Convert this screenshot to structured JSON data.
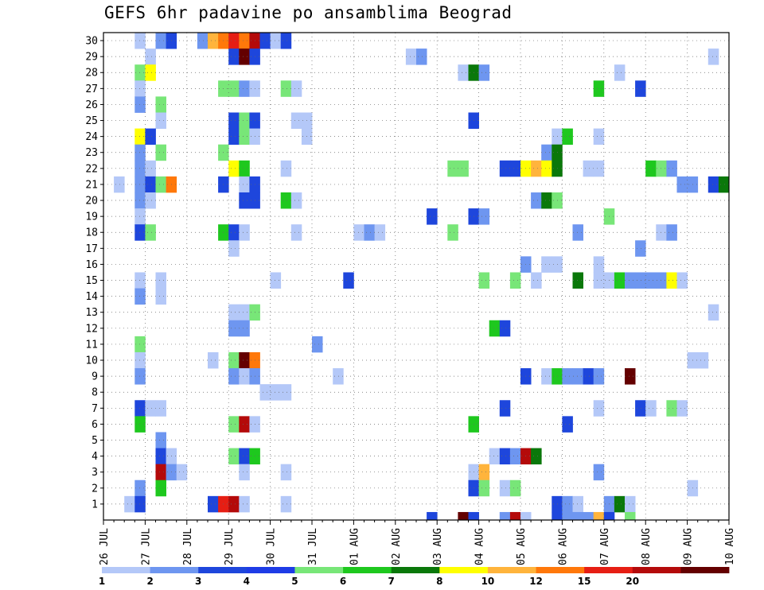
{
  "chart_data": {
    "type": "heatmap",
    "title": "GEFS 6hr padavine po ansamblima Beograd",
    "xlabel": "",
    "ylabel": "",
    "x_tick_labels": [
      "26 JUL",
      "27 JUL",
      "28 JUL",
      "29 JUL",
      "30 JUL",
      "31 JUL",
      "01 AUG",
      "02 AUG",
      "03 AUG",
      "04 AUG",
      "05 AUG",
      "06 AUG",
      "07 AUG",
      "08 AUG",
      "09 AUG",
      "10 AUG"
    ],
    "y_tick_labels": [
      "1",
      "2",
      "3",
      "4",
      "5",
      "6",
      "7",
      "8",
      "9",
      "10",
      "11",
      "12",
      "13",
      "14",
      "15",
      "16",
      "17",
      "18",
      "19",
      "20",
      "21",
      "22",
      "23",
      "24",
      "25",
      "26",
      "27",
      "28",
      "29",
      "30"
    ],
    "x_unit": "6-hour step from 26 JUL 00Z",
    "x_range": [
      0,
      60
    ],
    "y_range": [
      0,
      30
    ],
    "grid": true,
    "legend": {
      "position": "bottom",
      "tick_labels": [
        "1",
        "2",
        "3",
        "4",
        "5",
        "6",
        "7",
        "8",
        "10",
        "12",
        "15",
        "20"
      ],
      "colors": [
        "#b4c8f8",
        "#6e96f0",
        "#1e46dc",
        "#1e3ce6",
        "#78e678",
        "#1ec81e",
        "#0a780a",
        "#ffff00",
        "#ffb43c",
        "#ff780a",
        "#e61e14",
        "#b40a0a",
        "#640000"
      ]
    },
    "colors": [
      "#b4c8f8",
      "#6e96f0",
      "#1e46dc",
      "#78e678",
      "#1ec81e",
      "#0a780a",
      "#ffff00",
      "#ffb43c",
      "#ff780a",
      "#e61e14",
      "#b40a0a",
      "#640000"
    ],
    "cells": [
      [
        4,
        30,
        1
      ],
      [
        6,
        30,
        2
      ],
      [
        7,
        30,
        3
      ],
      [
        10,
        30,
        2
      ],
      [
        11,
        30,
        8
      ],
      [
        12,
        30,
        9
      ],
      [
        13,
        30,
        10
      ],
      [
        14,
        30,
        9
      ],
      [
        15,
        30,
        11
      ],
      [
        16,
        30,
        3
      ],
      [
        17,
        30,
        1
      ],
      [
        18,
        30,
        3
      ],
      [
        5,
        29,
        1
      ],
      [
        13,
        29,
        3
      ],
      [
        14,
        29,
        12
      ],
      [
        15,
        29,
        3
      ],
      [
        30,
        29,
        1
      ],
      [
        31,
        29,
        2
      ],
      [
        59,
        29,
        1
      ],
      [
        4,
        28,
        4
      ],
      [
        5,
        28,
        7
      ],
      [
        35,
        28,
        1
      ],
      [
        36,
        28,
        6
      ],
      [
        37,
        28,
        2
      ],
      [
        50,
        28,
        1
      ],
      [
        4,
        27,
        1
      ],
      [
        12,
        27,
        4
      ],
      [
        13,
        27,
        4
      ],
      [
        14,
        27,
        2
      ],
      [
        15,
        27,
        1
      ],
      [
        18,
        27,
        4
      ],
      [
        19,
        27,
        1
      ],
      [
        48,
        27,
        5
      ],
      [
        52,
        27,
        3
      ],
      [
        4,
        26,
        2
      ],
      [
        6,
        26,
        4
      ],
      [
        6,
        25,
        1
      ],
      [
        13,
        25,
        3
      ],
      [
        14,
        25,
        4
      ],
      [
        15,
        25,
        3
      ],
      [
        19,
        25,
        1
      ],
      [
        20,
        25,
        1
      ],
      [
        36,
        25,
        3
      ],
      [
        4,
        24,
        7
      ],
      [
        5,
        24,
        3
      ],
      [
        13,
        24,
        3
      ],
      [
        14,
        24,
        4
      ],
      [
        15,
        24,
        1
      ],
      [
        20,
        24,
        1
      ],
      [
        44,
        24,
        1
      ],
      [
        45,
        24,
        5
      ],
      [
        48,
        24,
        1
      ],
      [
        4,
        23,
        2
      ],
      [
        6,
        23,
        4
      ],
      [
        12,
        23,
        4
      ],
      [
        43,
        23,
        2
      ],
      [
        44,
        23,
        6
      ],
      [
        4,
        22,
        2
      ],
      [
        5,
        22,
        1
      ],
      [
        13,
        22,
        7
      ],
      [
        14,
        22,
        5
      ],
      [
        18,
        22,
        1
      ],
      [
        34,
        22,
        4
      ],
      [
        35,
        22,
        4
      ],
      [
        39,
        22,
        3
      ],
      [
        40,
        22,
        3
      ],
      [
        41,
        22,
        7
      ],
      [
        42,
        22,
        8
      ],
      [
        43,
        22,
        7
      ],
      [
        44,
        22,
        6
      ],
      [
        47,
        22,
        1
      ],
      [
        48,
        22,
        1
      ],
      [
        53,
        22,
        5
      ],
      [
        54,
        22,
        4
      ],
      [
        55,
        22,
        2
      ],
      [
        2,
        21,
        1
      ],
      [
        4,
        21,
        2
      ],
      [
        5,
        21,
        3
      ],
      [
        6,
        21,
        4
      ],
      [
        7,
        21,
        9
      ],
      [
        12,
        21,
        3
      ],
      [
        14,
        21,
        1
      ],
      [
        15,
        21,
        3
      ],
      [
        56,
        21,
        2
      ],
      [
        57,
        21,
        2
      ],
      [
        59,
        21,
        3
      ],
      [
        60,
        21,
        6
      ],
      [
        4,
        20,
        2
      ],
      [
        5,
        20,
        1
      ],
      [
        14,
        20,
        3
      ],
      [
        15,
        20,
        3
      ],
      [
        18,
        20,
        5
      ],
      [
        19,
        20,
        1
      ],
      [
        42,
        20,
        2
      ],
      [
        43,
        20,
        6
      ],
      [
        44,
        20,
        4
      ],
      [
        4,
        19,
        1
      ],
      [
        32,
        19,
        3
      ],
      [
        36,
        19,
        3
      ],
      [
        37,
        19,
        2
      ],
      [
        49,
        19,
        4
      ],
      [
        4,
        18,
        3
      ],
      [
        5,
        18,
        4
      ],
      [
        12,
        18,
        5
      ],
      [
        13,
        18,
        3
      ],
      [
        14,
        18,
        1
      ],
      [
        19,
        18,
        1
      ],
      [
        25,
        18,
        1
      ],
      [
        26,
        18,
        2
      ],
      [
        27,
        18,
        1
      ],
      [
        34,
        18,
        4
      ],
      [
        46,
        18,
        2
      ],
      [
        54,
        18,
        1
      ],
      [
        55,
        18,
        2
      ],
      [
        13,
        17,
        1
      ],
      [
        52,
        17,
        2
      ],
      [
        41,
        16,
        2
      ],
      [
        43,
        16,
        1
      ],
      [
        44,
        16,
        1
      ],
      [
        48,
        16,
        1
      ],
      [
        4,
        15,
        1
      ],
      [
        6,
        15,
        1
      ],
      [
        17,
        15,
        1
      ],
      [
        24,
        15,
        3
      ],
      [
        37,
        15,
        4
      ],
      [
        40,
        15,
        4
      ],
      [
        42,
        15,
        1
      ],
      [
        46,
        15,
        6
      ],
      [
        48,
        15,
        1
      ],
      [
        49,
        15,
        1
      ],
      [
        50,
        15,
        5
      ],
      [
        51,
        15,
        2
      ],
      [
        52,
        15,
        2
      ],
      [
        53,
        15,
        2
      ],
      [
        54,
        15,
        2
      ],
      [
        55,
        15,
        7
      ],
      [
        56,
        15,
        1
      ],
      [
        4,
        14,
        2
      ],
      [
        6,
        14,
        1
      ],
      [
        13,
        13,
        1
      ],
      [
        14,
        13,
        1
      ],
      [
        15,
        13,
        4
      ],
      [
        59,
        13,
        1
      ],
      [
        13,
        12,
        2
      ],
      [
        14,
        12,
        2
      ],
      [
        38,
        12,
        5
      ],
      [
        39,
        12,
        3
      ],
      [
        4,
        11,
        4
      ],
      [
        21,
        11,
        2
      ],
      [
        4,
        10,
        1
      ],
      [
        11,
        10,
        1
      ],
      [
        13,
        10,
        4
      ],
      [
        14,
        10,
        12
      ],
      [
        15,
        10,
        9
      ],
      [
        57,
        10,
        1
      ],
      [
        58,
        10,
        1
      ],
      [
        4,
        9,
        2
      ],
      [
        13,
        9,
        2
      ],
      [
        14,
        9,
        1
      ],
      [
        15,
        9,
        2
      ],
      [
        23,
        9,
        1
      ],
      [
        41,
        9,
        3
      ],
      [
        43,
        9,
        1
      ],
      [
        44,
        9,
        5
      ],
      [
        45,
        9,
        2
      ],
      [
        46,
        9,
        2
      ],
      [
        47,
        9,
        3
      ],
      [
        48,
        9,
        2
      ],
      [
        51,
        9,
        12
      ],
      [
        16,
        8,
        1
      ],
      [
        17,
        8,
        1
      ],
      [
        18,
        8,
        1
      ],
      [
        4,
        7,
        3
      ],
      [
        5,
        7,
        1
      ],
      [
        6,
        7,
        1
      ],
      [
        39,
        7,
        3
      ],
      [
        48,
        7,
        1
      ],
      [
        52,
        7,
        3
      ],
      [
        53,
        7,
        1
      ],
      [
        55,
        7,
        4
      ],
      [
        56,
        7,
        1
      ],
      [
        4,
        6,
        5
      ],
      [
        13,
        6,
        4
      ],
      [
        14,
        6,
        11
      ],
      [
        15,
        6,
        1
      ],
      [
        36,
        6,
        5
      ],
      [
        45,
        6,
        3
      ],
      [
        6,
        5,
        2
      ],
      [
        6,
        4,
        3
      ],
      [
        7,
        4,
        1
      ],
      [
        13,
        4,
        4
      ],
      [
        14,
        4,
        3
      ],
      [
        15,
        4,
        5
      ],
      [
        38,
        4,
        1
      ],
      [
        39,
        4,
        3
      ],
      [
        40,
        4,
        2
      ],
      [
        41,
        4,
        11
      ],
      [
        42,
        4,
        6
      ],
      [
        6,
        3,
        11
      ],
      [
        7,
        3,
        2
      ],
      [
        8,
        3,
        1
      ],
      [
        14,
        3,
        1
      ],
      [
        18,
        3,
        1
      ],
      [
        36,
        3,
        1
      ],
      [
        37,
        3,
        8
      ],
      [
        48,
        3,
        2
      ],
      [
        4,
        2,
        2
      ],
      [
        6,
        2,
        5
      ],
      [
        36,
        2,
        3
      ],
      [
        37,
        2,
        4
      ],
      [
        39,
        2,
        1
      ],
      [
        40,
        2,
        4
      ],
      [
        57,
        2,
        1
      ],
      [
        3,
        1,
        1
      ],
      [
        4,
        1,
        3
      ],
      [
        11,
        1,
        3
      ],
      [
        12,
        1,
        10
      ],
      [
        13,
        1,
        11
      ],
      [
        14,
        1,
        1
      ],
      [
        18,
        1,
        1
      ],
      [
        44,
        1,
        3
      ],
      [
        45,
        1,
        2
      ],
      [
        46,
        1,
        1
      ],
      [
        49,
        1,
        2
      ],
      [
        50,
        1,
        6
      ],
      [
        51,
        1,
        1
      ]
    ],
    "bottom_strip": [
      [
        32,
        3
      ],
      [
        35,
        12
      ],
      [
        36,
        3
      ],
      [
        39,
        2
      ],
      [
        40,
        11
      ],
      [
        41,
        1
      ],
      [
        44,
        3
      ],
      [
        45,
        2
      ],
      [
        46,
        2
      ],
      [
        47,
        2
      ],
      [
        48,
        8
      ],
      [
        49,
        3
      ],
      [
        51,
        4
      ]
    ]
  }
}
